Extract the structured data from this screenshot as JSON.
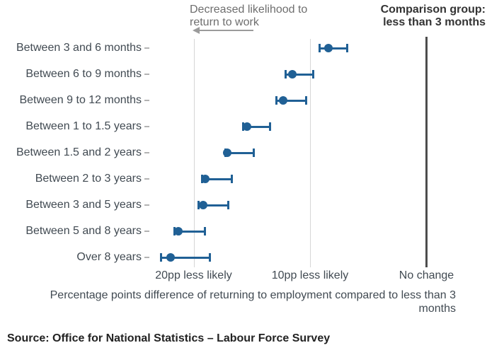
{
  "annotation": {
    "line1": "Decreased likelihood to",
    "line2": "return to work"
  },
  "comparison": {
    "line1": "Comparison group:",
    "line2": "less than 3 months"
  },
  "chart_data": {
    "type": "scatter",
    "subtype": "horizontal-dot-plot-with-confidence-intervals",
    "title": "",
    "categories": [
      "Between 3 and 6 months",
      "Between 6 to 9 months",
      "Between 9 to 12 months",
      "Between 1 to 1.5 years",
      "Between 1.5 and 2 years",
      "Between 2 to 3 years",
      "Between 3 and 5 years",
      "Between 5 and 8 years",
      "Over 8 years"
    ],
    "series": [
      {
        "name": "Percentage point difference in returning to employment vs less than 3 months",
        "values": [
          -8.4,
          -11.5,
          -12.3,
          -15.4,
          -17.1,
          -19.0,
          -19.2,
          -21.3,
          -22.0
        ],
        "ci_low": [
          -9.2,
          -12.1,
          -12.9,
          -15.8,
          -17.3,
          -19.3,
          -19.6,
          -21.7,
          -22.8
        ],
        "ci_high": [
          -6.8,
          -9.7,
          -10.3,
          -13.4,
          -14.8,
          -16.7,
          -17.0,
          -19.0,
          -18.6
        ]
      }
    ],
    "xticks": [
      {
        "value": -20,
        "label": "20pp less likely"
      },
      {
        "value": -10,
        "label": "10pp less likely"
      },
      {
        "value": 0,
        "label": "No change"
      }
    ],
    "xlim": [
      -24,
      1.5
    ],
    "xlabel": "Percentage points difference of returning to employment compared to less than 3 months",
    "xlabel_lines": [
      "Percentage points difference of returning to employment compared to less than 3",
      "months"
    ],
    "grid": "vertical-gridlines-at-ticks",
    "legend": "none"
  },
  "source": "Source: Office for National Statistics – Labour Force Survey",
  "colors": {
    "marker_blue": "#206095",
    "zero_line": "#4d4d4d",
    "gridline": "#d6d6d6",
    "annotation_text": "#6e6e6e",
    "label_text": "#414a52",
    "bold_text": "#333333"
  }
}
